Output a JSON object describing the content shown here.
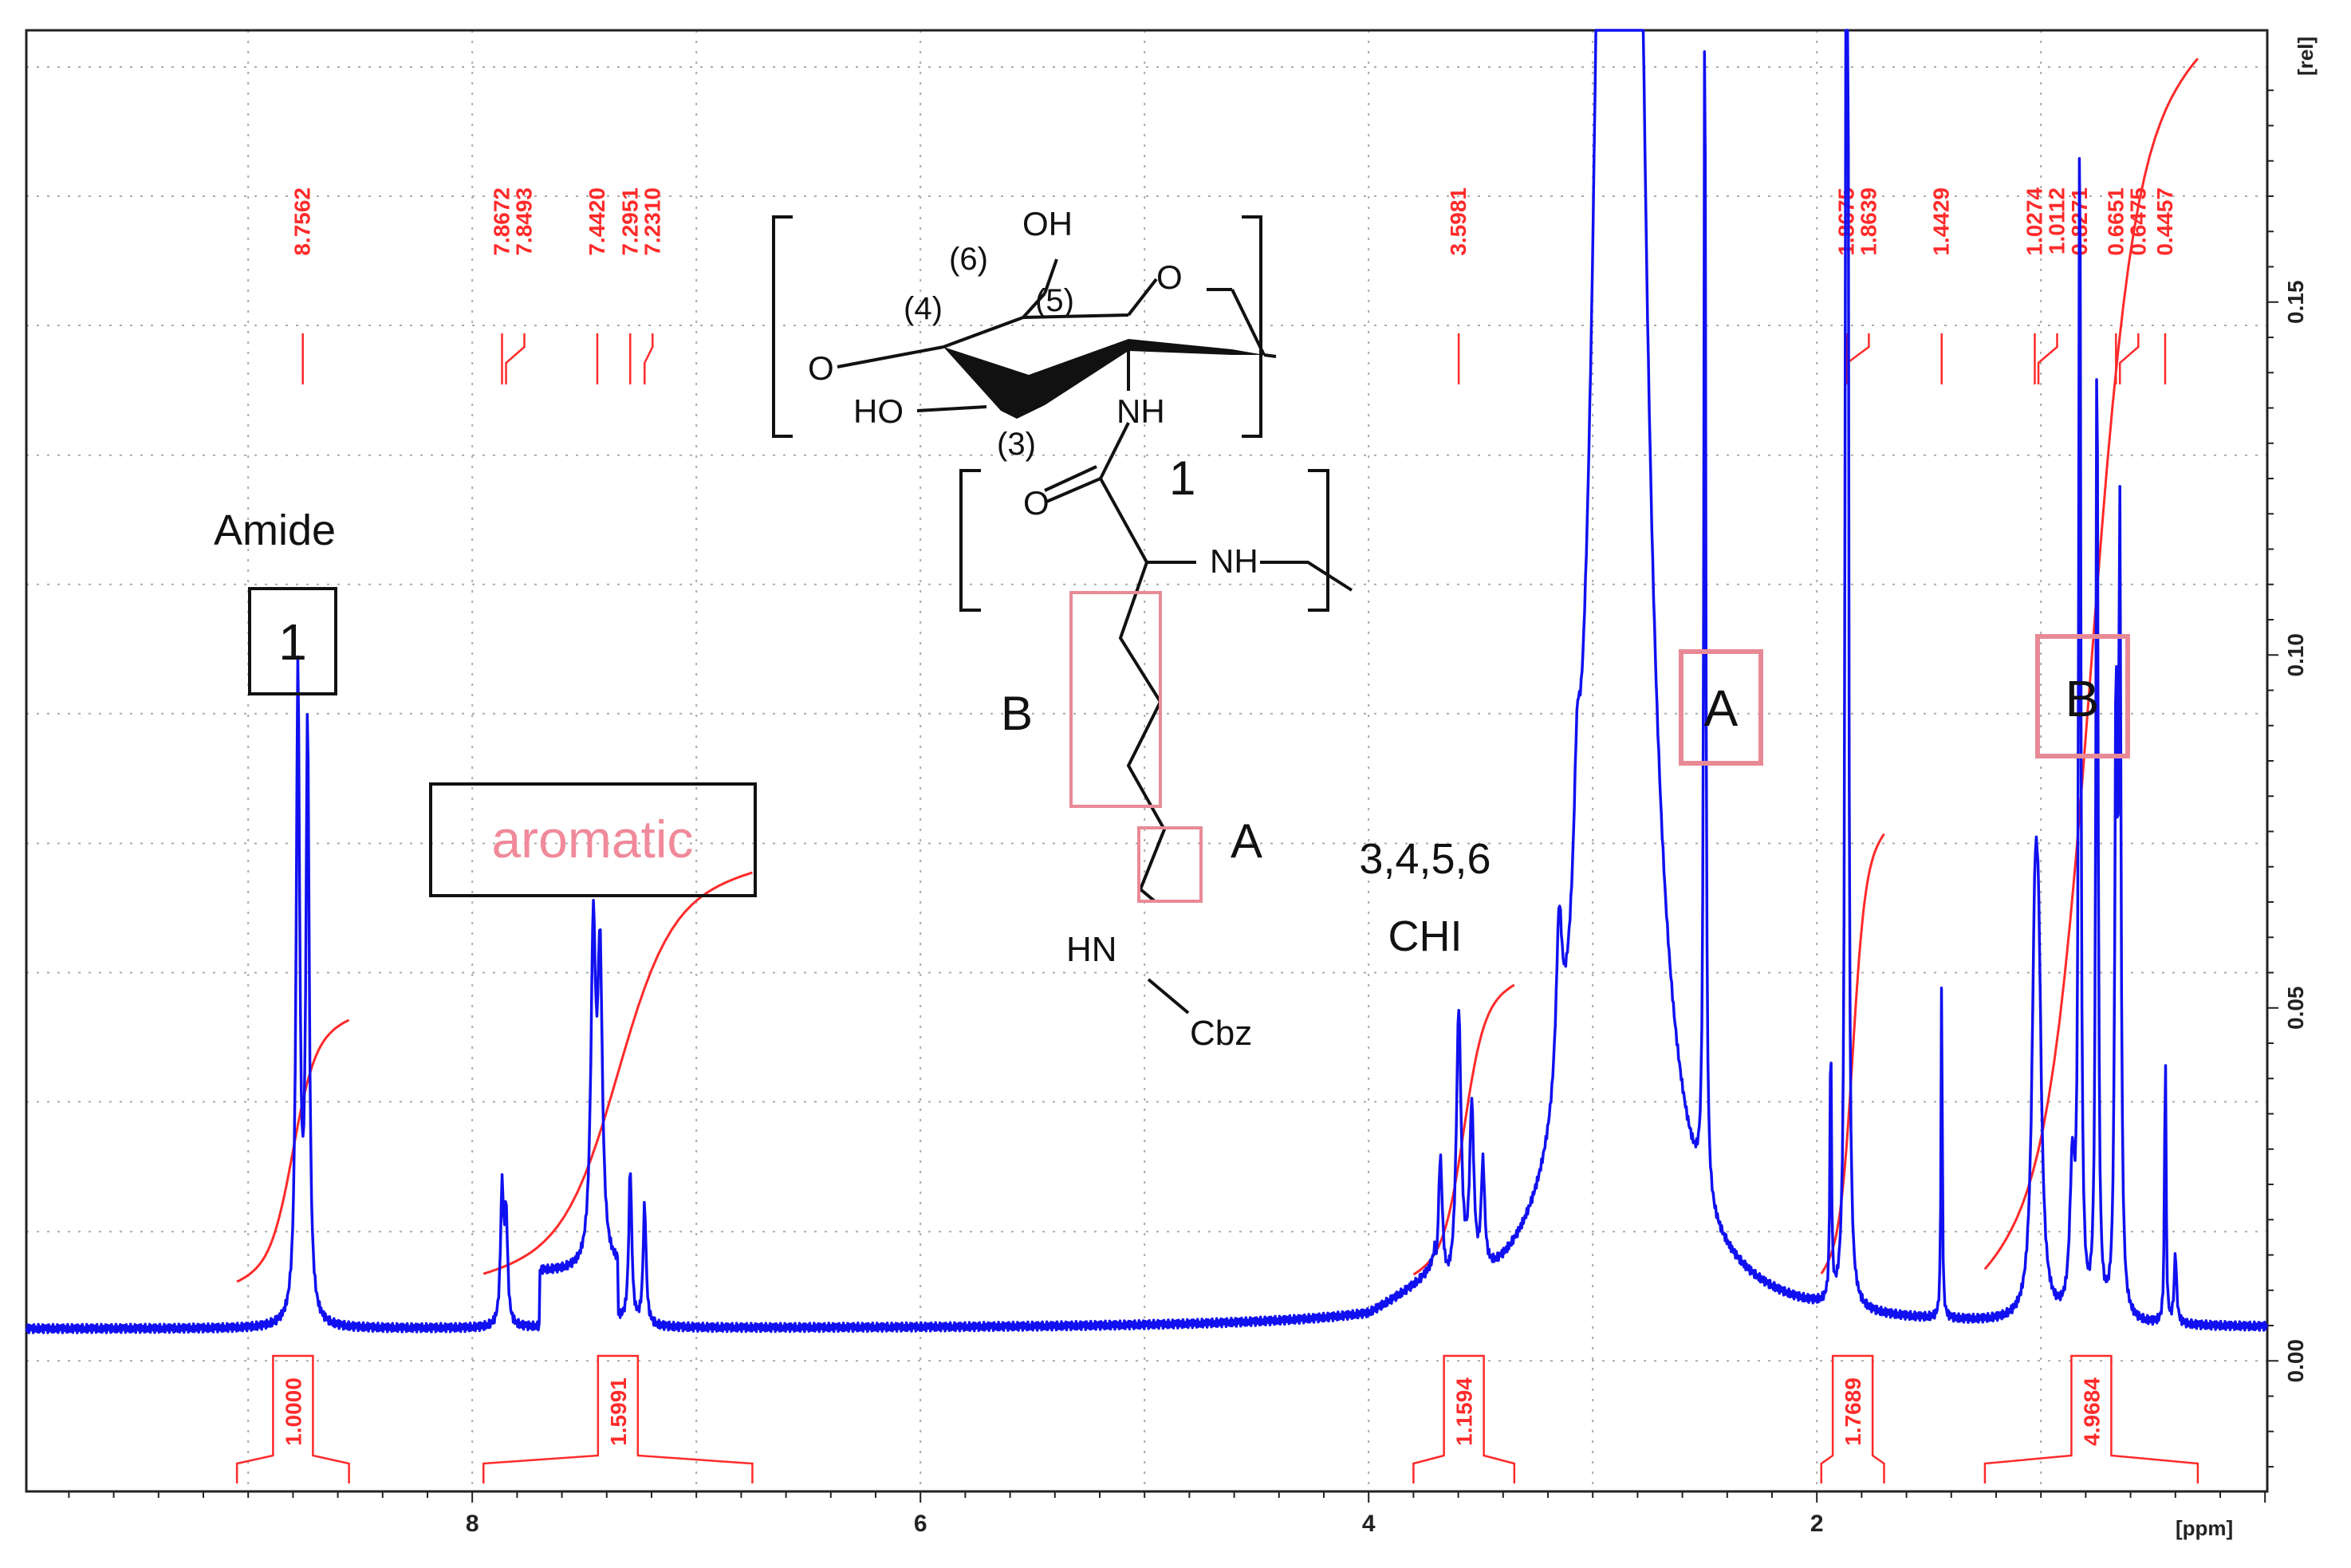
{
  "chart_data": {
    "type": "line",
    "title": "",
    "xlabel": "[ppm]",
    "ylabel": "[rel]",
    "x_reversed": true,
    "xlim": [
      9.99,
      -0.01
    ],
    "ylim": [
      -0.0185,
      0.1885
    ],
    "x_ticks": [
      8,
      6,
      4,
      2
    ],
    "x_tick_labels": [
      "8",
      "6",
      "4",
      "2"
    ],
    "y_ticks": [
      0.0,
      0.05,
      0.1,
      0.15
    ],
    "y_tick_labels": [
      "0.00",
      "0.05",
      "0.10",
      "0.15"
    ],
    "grid": true,
    "series": [
      {
        "color": "#1010f0",
        "baseline": 0.0045,
        "peaks": [
          {
            "ppm": 8.778,
            "height": 0.092,
            "width": 0.03
          },
          {
            "ppm": 8.735,
            "height": 0.084,
            "width": 0.028
          },
          {
            "ppm": 7.867,
            "height": 0.019,
            "width": 0.025
          },
          {
            "ppm": 7.849,
            "height": 0.015,
            "width": 0.025
          },
          {
            "ppm": 7.46,
            "height": 0.046,
            "width": 0.04
          },
          {
            "ppm": 7.43,
            "height": 0.042,
            "width": 0.04
          },
          {
            "ppm": 7.295,
            "height": 0.022,
            "width": 0.025
          },
          {
            "ppm": 7.231,
            "height": 0.017,
            "width": 0.025
          },
          {
            "ppm": 3.68,
            "height": 0.019,
            "width": 0.035
          },
          {
            "ppm": 3.598,
            "height": 0.039,
            "width": 0.04
          },
          {
            "ppm": 3.54,
            "height": 0.024,
            "width": 0.035
          },
          {
            "ppm": 3.49,
            "height": 0.015,
            "width": 0.03
          },
          {
            "ppm": 3.15,
            "height": 0.023,
            "width": 0.05
          },
          {
            "ppm": 3.07,
            "height": 0.017,
            "width": 0.05
          },
          {
            "ppm": 2.88,
            "height": 0.7,
            "width": 0.2
          },
          {
            "ppm": 2.5,
            "height": 0.177,
            "width": 0.016
          },
          {
            "ppm": 1.938,
            "height": 0.04,
            "width": 0.012
          },
          {
            "ppm": 1.868,
            "height": 0.31,
            "width": 0.012
          },
          {
            "ppm": 1.864,
            "height": 0.3,
            "width": 0.012
          },
          {
            "ppm": 1.443,
            "height": 0.05,
            "width": 0.01
          },
          {
            "ppm": 1.027,
            "height": 0.045,
            "width": 0.05
          },
          {
            "ppm": 1.011,
            "height": 0.04,
            "width": 0.05
          },
          {
            "ppm": 0.86,
            "height": 0.02,
            "width": 0.04
          },
          {
            "ppm": 0.827,
            "height": 0.172,
            "width": 0.018
          },
          {
            "ppm": 0.75,
            "height": 0.141,
            "width": 0.018
          },
          {
            "ppm": 0.665,
            "height": 0.083,
            "width": 0.02
          },
          {
            "ppm": 0.648,
            "height": 0.108,
            "width": 0.02
          },
          {
            "ppm": 0.445,
            "height": 0.04,
            "width": 0.012
          },
          {
            "ppm": 0.4,
            "height": 0.01,
            "width": 0.02
          }
        ]
      }
    ],
    "peak_labels": [
      "8.7562",
      "7.8672",
      "7.8493",
      "7.4420",
      "7.2951",
      "7.2310",
      "3.5981",
      "1.8675",
      "1.8639",
      "1.4429",
      "1.0274",
      "1.0112",
      "0.8271",
      "0.6651",
      "0.6475",
      "0.4457"
    ],
    "peak_label_ppm": [
      8.7562,
      7.8672,
      7.8493,
      7.442,
      7.2951,
      7.231,
      3.5981,
      1.8675,
      1.8639,
      1.4429,
      1.0274,
      1.0112,
      0.8271,
      0.6651,
      0.6475,
      0.4457
    ],
    "integrals": [
      {
        "from": 9.05,
        "to": 8.55,
        "value": "1.0000",
        "y_start": 0.011,
        "y_end": 0.0485
      },
      {
        "from": 7.95,
        "to": 6.75,
        "value": "1.5991",
        "y_start": 0.012,
        "y_end": 0.0695
      },
      {
        "from": 3.8,
        "to": 3.35,
        "value": "1.1594",
        "y_start": 0.012,
        "y_end": 0.0535
      },
      {
        "from": 1.98,
        "to": 1.7,
        "value": "1.7689",
        "y_start": 0.012,
        "y_end": 0.075
      },
      {
        "from": 1.25,
        "to": 0.3,
        "value": "4.9684",
        "y_start": 0.012,
        "y_end": 0.1855
      }
    ],
    "annotations": {
      "amide_label": "Amide",
      "amide_box": "1",
      "aromatic_label": "aromatic",
      "region_a": "A",
      "region_b": "B",
      "chi_line1": "3,4,5,6",
      "chi_line2": "CHI"
    },
    "structure": {
      "oh": "OH",
      "o_ring": "O",
      "o_link": "O",
      "ho": "HO",
      "nh": "NH",
      "n6": "(6)",
      "n5": "(5)",
      "n4": "(4)",
      "n3": "(3)",
      "unit": "1",
      "o_carbonyl": "O",
      "nh2": "NH",
      "b": "B",
      "a": "A",
      "hn": "HN",
      "cbz": "Cbz"
    }
  }
}
